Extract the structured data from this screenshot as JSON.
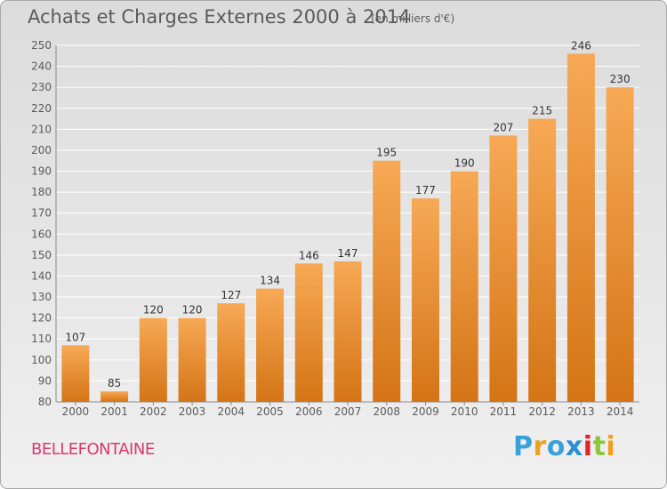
{
  "title": "Achats et Charges Externes 2000 à 2014",
  "unit_label": "(en milliers d'€)",
  "commune": "BELLEFONTAINE",
  "logo": {
    "letters": [
      "P",
      "r",
      "o",
      "x",
      "i",
      "t",
      "i"
    ],
    "colors": [
      "#3aa0d8",
      "#f0a020",
      "#3aa0d8",
      "#2e8fd4",
      "#e0262a",
      "#8cc63f",
      "#f0a020"
    ]
  },
  "colors": {
    "bar_light": "#f7a955",
    "bar_dark": "#d47416",
    "text": "#5a5a5a",
    "grid": "#ffffff"
  },
  "chart_data": {
    "type": "bar",
    "title": "Achats et Charges Externes 2000 à 2014",
    "subtitle": "(en milliers d'€)",
    "categories": [
      "2000",
      "2001",
      "2002",
      "2003",
      "2004",
      "2005",
      "2006",
      "2007",
      "2008",
      "2009",
      "2010",
      "2011",
      "2012",
      "2013",
      "2014"
    ],
    "values": [
      107,
      85,
      120,
      120,
      127,
      134,
      146,
      147,
      195,
      177,
      190,
      207,
      215,
      246,
      230
    ],
    "ylim": [
      80,
      250
    ],
    "yticks": [
      80,
      90,
      100,
      110,
      120,
      130,
      140,
      150,
      160,
      170,
      180,
      190,
      200,
      210,
      220,
      230,
      240,
      250
    ],
    "grid": true,
    "data_labels": true
  }
}
